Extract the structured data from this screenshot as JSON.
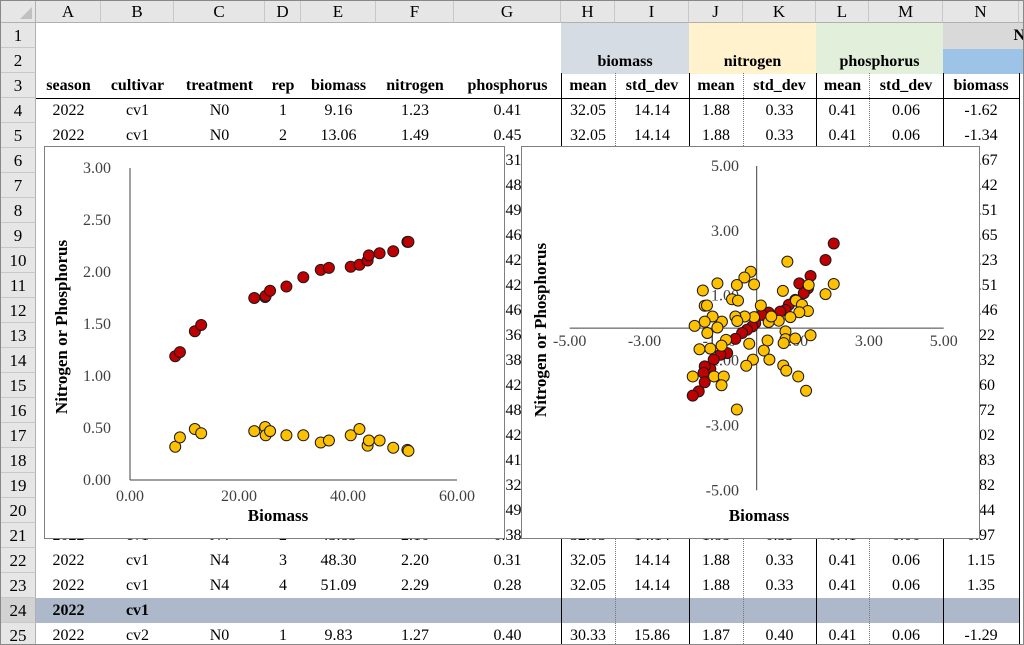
{
  "columns": [
    "A",
    "B",
    "C",
    "D",
    "E",
    "F",
    "G",
    "H",
    "I",
    "J",
    "K",
    "L",
    "M",
    "N"
  ],
  "row_numbers": [
    1,
    2,
    3,
    4,
    5,
    6,
    7,
    8,
    9,
    10,
    11,
    12,
    13,
    14,
    15,
    16,
    17,
    18,
    19,
    20,
    21,
    22,
    23,
    24,
    25
  ],
  "group_headers": {
    "biomass": "biomass",
    "nitrogen": "nitrogen",
    "phosphorus": "phosphorus",
    "n_group": "N"
  },
  "group_colors": {
    "biomass": "#d6dce4",
    "nitrogen": "#fff2cc",
    "phosphorus": "#e2efda",
    "n_group_top": "#d9d9d9",
    "n_group_bottom": "#9dc3e6",
    "summary_row": "#adb9ca"
  },
  "field_headers": [
    "season",
    "cultivar",
    "treatment",
    "rep",
    "biomass",
    "nitrogen",
    "phosphorus",
    "mean",
    "std_dev",
    "mean",
    "std_dev",
    "mean",
    "std_dev",
    "biomass"
  ],
  "rows": [
    {
      "row": 4,
      "cells": [
        "2022",
        "cv1",
        "N0",
        "1",
        "9.16",
        "1.23",
        "0.41",
        "32.05",
        "14.14",
        "1.88",
        "0.33",
        "0.41",
        "0.06",
        "-1.62"
      ]
    },
    {
      "row": 5,
      "cells": [
        "2022",
        "cv1",
        "N0",
        "2",
        "13.06",
        "1.49",
        "0.45",
        "32.05",
        "14.14",
        "1.88",
        "0.33",
        "0.41",
        "0.06",
        "-1.34"
      ]
    },
    {
      "row": 6,
      "cells": [
        "",
        "",
        "",
        "",
        "",
        "",
        "0.31",
        "",
        "",
        "",
        "",
        "",
        "",
        "-1.67"
      ]
    },
    {
      "row": 7,
      "cells": [
        "",
        "",
        "",
        "",
        "",
        "",
        "0.48",
        "",
        "",
        "",
        "",
        "",
        "",
        "-1.42"
      ]
    },
    {
      "row": 8,
      "cells": [
        "",
        "",
        "",
        "",
        "",
        "",
        "0.49",
        "",
        "",
        "",
        "",
        "",
        "",
        "-0.51"
      ]
    },
    {
      "row": 9,
      "cells": [
        "",
        "",
        "",
        "",
        "",
        "",
        "0.46",
        "",
        "",
        "",
        "",
        "",
        "",
        "-0.65"
      ]
    },
    {
      "row": 10,
      "cells": [
        "",
        "",
        "",
        "",
        "",
        "",
        "0.42",
        "",
        "",
        "",
        "",
        "",
        "",
        "-0.23"
      ]
    },
    {
      "row": 11,
      "cells": [
        "",
        "",
        "",
        "",
        "",
        "",
        "0.42",
        "",
        "",
        "",
        "",
        "",
        "",
        "-0.51"
      ]
    },
    {
      "row": 12,
      "cells": [
        "",
        "",
        "",
        "",
        "",
        "",
        "0.46",
        "",
        "",
        "",
        "",
        "",
        "",
        "-0.46"
      ]
    },
    {
      "row": 13,
      "cells": [
        "",
        "",
        "",
        "",
        "",
        "",
        "0.36",
        "",
        "",
        "",
        "",
        "",
        "",
        "0.22"
      ]
    },
    {
      "row": 14,
      "cells": [
        "",
        "",
        "",
        "",
        "",
        "",
        "0.38",
        "",
        "",
        "",
        "",
        "",
        "",
        "0.32"
      ]
    },
    {
      "row": 15,
      "cells": [
        "",
        "",
        "",
        "",
        "",
        "",
        "0.42",
        "",
        "",
        "",
        "",
        "",
        "",
        "0.60"
      ]
    },
    {
      "row": 16,
      "cells": [
        "",
        "",
        "",
        "",
        "",
        "",
        "0.48",
        "",
        "",
        "",
        "",
        "",
        "",
        "0.72"
      ]
    },
    {
      "row": 17,
      "cells": [
        "",
        "",
        "",
        "",
        "",
        "",
        "0.42",
        "",
        "",
        "",
        "",
        "",
        "",
        "1.02"
      ]
    },
    {
      "row": 18,
      "cells": [
        "",
        "",
        "",
        "",
        "",
        "",
        "0.41",
        "",
        "",
        "",
        "",
        "",
        "",
        "0.83"
      ]
    },
    {
      "row": 19,
      "cells": [
        "",
        "",
        "",
        "",
        "",
        "",
        "0.32",
        "",
        "",
        "",
        "",
        "",
        "",
        "0.82"
      ]
    },
    {
      "row": 20,
      "cells": [
        "",
        "",
        "",
        "",
        "",
        "",
        "0.49",
        "",
        "",
        "",
        "",
        "",
        "",
        "0.44"
      ]
    },
    {
      "row": 21,
      "cells": [
        "2022",
        "cv1",
        "N4",
        "2",
        "43.83",
        "2.16",
        "0.38",
        "32.05",
        "14.14",
        "1.88",
        "0.33",
        "0.41",
        "0.06",
        "0.97"
      ]
    },
    {
      "row": 22,
      "cells": [
        "2022",
        "cv1",
        "N4",
        "3",
        "48.30",
        "2.20",
        "0.31",
        "32.05",
        "14.14",
        "1.88",
        "0.33",
        "0.41",
        "0.06",
        "1.15"
      ]
    },
    {
      "row": 23,
      "cells": [
        "2022",
        "cv1",
        "N4",
        "4",
        "51.09",
        "2.29",
        "0.28",
        "32.05",
        "14.14",
        "1.88",
        "0.33",
        "0.41",
        "0.06",
        "1.35"
      ]
    },
    {
      "row": 24,
      "cells": [
        "2022",
        "cv1",
        "",
        "",
        "",
        "",
        "",
        "",
        "",
        "",
        "",
        "",
        "",
        ""
      ]
    },
    {
      "row": 25,
      "cells": [
        "2022",
        "cv2",
        "N0",
        "1",
        "9.83",
        "1.27",
        "0.40",
        "30.33",
        "15.86",
        "1.87",
        "0.40",
        "0.41",
        "0.06",
        "-1.29"
      ]
    }
  ],
  "chart_data": [
    {
      "type": "scatter",
      "xlabel": "Biomass",
      "ylabel": "Nitrogen or Phosphorus",
      "xlim": [
        0,
        60
      ],
      "ylim": [
        0,
        3
      ],
      "x_ticks": [
        0,
        20,
        40,
        60
      ],
      "x_tick_labels": [
        "0.00",
        "20.00",
        "40.00",
        "60.00"
      ],
      "y_ticks": [
        0,
        0.5,
        1,
        1.5,
        2,
        2.5,
        3
      ],
      "y_tick_labels": [
        "0.00",
        "0.50",
        "1.00",
        "1.50",
        "2.00",
        "2.50",
        "3.00"
      ],
      "grid": false,
      "legend": "none",
      "series": [
        {
          "color": "#c00000",
          "x": [
            8.3,
            9.16,
            11.9,
            13.06,
            22.8,
            24.8,
            24.9,
            25.7,
            28.7,
            31.8,
            35.0,
            36.5,
            40.5,
            42.1,
            43.6,
            43.83,
            45.8,
            48.3,
            50.9,
            51.09
          ],
          "y": [
            1.19,
            1.23,
            1.43,
            1.49,
            1.75,
            1.76,
            1.77,
            1.82,
            1.86,
            1.95,
            2.02,
            2.04,
            2.05,
            2.07,
            2.11,
            2.16,
            2.18,
            2.2,
            2.29,
            2.29
          ]
        },
        {
          "color": "#ffc000",
          "x": [
            8.3,
            9.16,
            11.9,
            13.06,
            22.8,
            24.8,
            24.9,
            25.7,
            28.7,
            31.8,
            35.0,
            36.5,
            40.5,
            42.1,
            43.6,
            43.83,
            45.8,
            48.3,
            50.9,
            51.09
          ],
          "y": [
            0.32,
            0.41,
            0.49,
            0.45,
            0.47,
            0.51,
            0.43,
            0.47,
            0.43,
            0.43,
            0.36,
            0.38,
            0.43,
            0.49,
            0.33,
            0.38,
            0.38,
            0.31,
            0.29,
            0.28
          ]
        }
      ]
    },
    {
      "type": "scatter",
      "xlabel": "Biomass",
      "ylabel": "Nitrogen or Phosphorus",
      "xlim": [
        -5,
        5
      ],
      "ylim": [
        -5,
        5
      ],
      "x_ticks": [
        -5,
        -3,
        -1,
        1,
        3,
        5
      ],
      "x_tick_labels": [
        "-5.00",
        "-3.00",
        "-1.00",
        "1.00",
        "3.00",
        "5.00"
      ],
      "y_ticks": [
        5,
        3,
        1,
        -1,
        -3,
        -5
      ],
      "y_tick_labels": [
        "5.00",
        "3.00",
        "1.00",
        "-1.00",
        "-3.00",
        "-5.00"
      ],
      "grid": false,
      "legend": "none",
      "series": [
        {
          "color": "#c00000",
          "x": [
            2.06,
            1.84,
            1.44,
            1.14,
            1.37,
            1.26,
            1.03,
            0.86,
            0.77,
            0.63,
            0.32,
            0.14,
            -0.04,
            -0.12,
            -0.26,
            -0.39,
            -0.57,
            -0.79,
            -0.97,
            -1.15,
            -1.24,
            -1.39,
            -1.42,
            -1.39,
            -1.55,
            -1.71
          ],
          "y": [
            2.61,
            2.1,
            1.61,
            1.38,
            1.23,
            1.08,
            0.87,
            0.72,
            0.56,
            0.51,
            0.48,
            0.41,
            0.15,
            0.05,
            -0.05,
            -0.15,
            -0.33,
            -0.77,
            -0.82,
            -0.97,
            -1.26,
            -1.18,
            -1.38,
            -1.67,
            -1.95,
            -2.08
          ]
        },
        {
          "color": "#ffc000",
          "x": [
            0.82,
            -0.16,
            -0.33,
            -0.07,
            -0.53,
            -1.05,
            -1.44,
            -0.66,
            -0.5,
            -1.39,
            -1.33,
            0.11,
            0.7,
            1.05,
            1.39,
            2.06,
            1.84,
            1.21,
            1.37,
            1.14,
            0.9,
            0.59,
            0.32,
            0.39,
            -0.07,
            -0.32,
            -0.57,
            -0.52,
            -0.93,
            -1.18,
            -1.39,
            -1.66,
            -1.05,
            -1.32,
            -0.82,
            -0.94,
            -1.53,
            -1.24,
            -0.2,
            0.29,
            0.19,
            -0.1,
            -0.28,
            0.34,
            0.77,
            0.77,
            0.72,
            1.03,
            1.44,
            0.71,
            0.79,
            1.11,
            1.32,
            -1.71,
            -1.14,
            -0.88,
            -0.94,
            -0.53
          ],
          "y": [
            2.05,
            1.74,
            1.56,
            1.35,
            1.33,
            1.38,
            1.16,
            0.89,
            0.85,
            0.69,
            0.7,
            0.7,
            1.15,
            0.85,
            1.33,
            1.36,
            1.05,
            0.72,
            0.53,
            0.49,
            0.34,
            0.23,
            0.19,
            0.36,
            0.34,
            0.36,
            0.36,
            0.22,
            0.2,
            0.36,
            0.2,
            0.07,
            0.02,
            -0.15,
            -0.36,
            -0.54,
            -0.65,
            -0.63,
            -0.48,
            -0.38,
            -0.69,
            -0.97,
            -1.16,
            -0.97,
            -0.1,
            -0.34,
            -0.46,
            -0.32,
            -0.22,
            -1.15,
            -1.31,
            -1.49,
            -1.93,
            -1.49,
            -1.49,
            -1.49,
            -1.76,
            -2.51
          ]
        }
      ]
    }
  ]
}
